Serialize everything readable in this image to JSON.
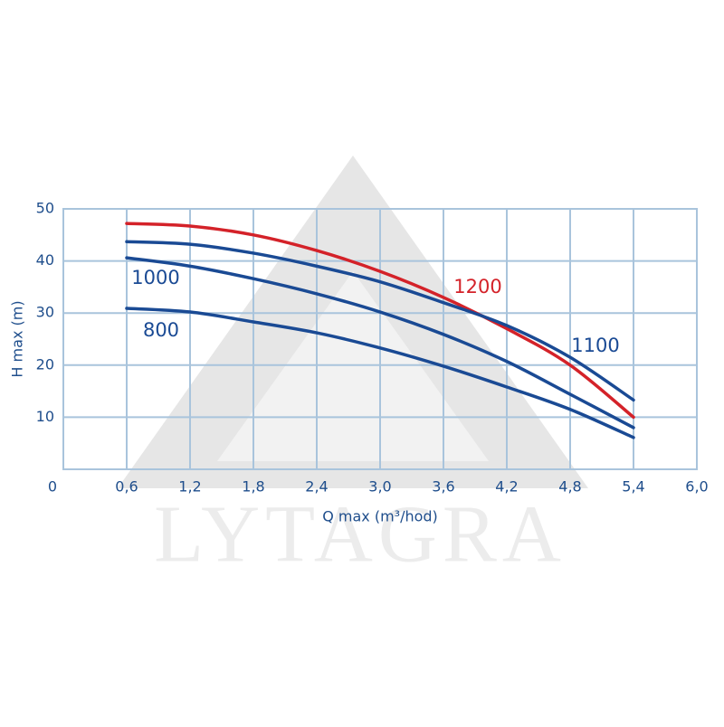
{
  "chart_data": {
    "type": "line",
    "watermark": "LYTAGRA",
    "x_label": "Q max (m³/hod)",
    "y_label": "H max (m)",
    "x": [
      0.6,
      1.2,
      1.8,
      2.4,
      3.0,
      3.6,
      4.2,
      4.8,
      5.4
    ],
    "series": [
      {
        "name": "1200",
        "color": "#d42229",
        "values": [
          47.2,
          46.7,
          45,
          42,
          38,
          33,
          27,
          20,
          10
        ]
      },
      {
        "name": "1100",
        "color": "#1a4a94",
        "values": [
          43.7,
          43.2,
          41.5,
          39,
          36,
          32,
          27.6,
          21.5,
          13.3
        ]
      },
      {
        "name": "1000",
        "color": "#1a4a94",
        "values": [
          40.6,
          39,
          36.6,
          33.7,
          30.2,
          25.9,
          20.7,
          14.4,
          8
        ]
      },
      {
        "name": "800",
        "color": "#1a4a94",
        "values": [
          30.9,
          30.2,
          28.3,
          26.2,
          23.3,
          19.8,
          15.8,
          11.5,
          6.1
        ]
      }
    ],
    "xlim": [
      0,
      6.0
    ],
    "ylim": [
      0,
      50
    ],
    "xticks": [
      0,
      {
        "value": 0.6,
        "label": "0,6"
      },
      {
        "value": 1.2,
        "label": "1,2"
      },
      {
        "value": 1.8,
        "label": "1,8"
      },
      {
        "value": 2.4,
        "label": "2,4"
      },
      {
        "value": 3.0,
        "label": "3,0"
      },
      {
        "value": 3.6,
        "label": "3,6"
      },
      {
        "value": 4.2,
        "label": "4,2"
      },
      {
        "value": 4.8,
        "label": "4,8"
      },
      {
        "value": 5.4,
        "label": "5,4"
      },
      {
        "value": 6.0,
        "label": "6,0"
      }
    ],
    "yticks": [
      10,
      20,
      30,
      40,
      50
    ],
    "grid": true
  }
}
